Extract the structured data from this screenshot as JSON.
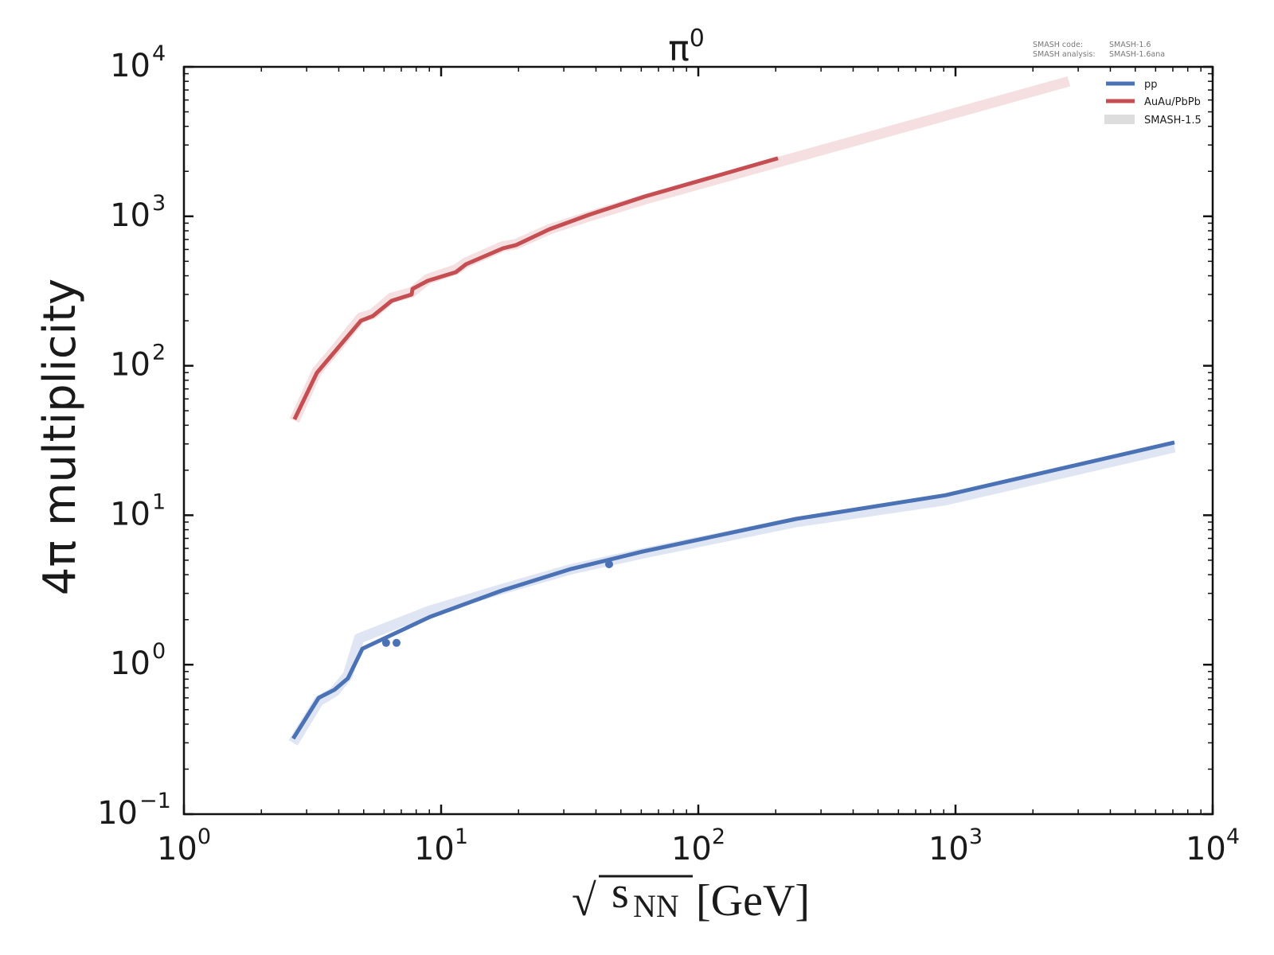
{
  "chart_data": {
    "type": "line",
    "title": "π⁰",
    "title_base": "π",
    "title_sup": "0",
    "xlabel": "√sNN [GeV]",
    "xlabel_parts": {
      "sqrt": "√",
      "s": "s",
      "sub": "NN",
      "unit": "[GeV]"
    },
    "ylabel": "4π multiplicity",
    "xscale": "log",
    "yscale": "log",
    "xlim": [
      1,
      10000
    ],
    "ylim": [
      0.1,
      10000
    ],
    "grid": false,
    "x_ticks": [
      {
        "base": "10",
        "exp": "0",
        "value": 1
      },
      {
        "base": "10",
        "exp": "1",
        "value": 10
      },
      {
        "base": "10",
        "exp": "2",
        "value": 100
      },
      {
        "base": "10",
        "exp": "3",
        "value": 1000
      },
      {
        "base": "10",
        "exp": "4",
        "value": 10000
      }
    ],
    "y_ticks": [
      {
        "base": "10",
        "exp": "−1",
        "value": 0.1
      },
      {
        "base": "10",
        "exp": "0",
        "value": 1
      },
      {
        "base": "10",
        "exp": "1",
        "value": 10
      },
      {
        "base": "10",
        "exp": "2",
        "value": 100
      },
      {
        "base": "10",
        "exp": "3",
        "value": 1000
      },
      {
        "base": "10",
        "exp": "4",
        "value": 10000
      }
    ],
    "legend_position": "top-right",
    "series": [
      {
        "name": "pp",
        "color": "#4a72b5",
        "kind": "line",
        "x": [
          2.66,
          3.34,
          3.85,
          4.34,
          4.94,
          9.05,
          17.2,
          32,
          60.7,
          240,
          912,
          7100
        ],
        "y": [
          0.32,
          0.6,
          0.68,
          0.81,
          1.28,
          2.09,
          3.13,
          4.37,
          5.71,
          9.45,
          13.6,
          30.7
        ]
      },
      {
        "name": "AuAu/PbPb",
        "color": "#c44e52",
        "kind": "line",
        "x": [
          2.69,
          3.29,
          3.9,
          4.87,
          5.42,
          6.42,
          7.68,
          7.74,
          8.86,
          11.4,
          12.5,
          17.4,
          19.5,
          26.4,
          37.6,
          62,
          204
        ],
        "y": [
          43.8,
          90,
          127,
          200,
          215,
          272,
          300,
          327,
          370,
          423,
          478,
          611,
          641,
          820,
          1023,
          1357,
          2443
        ]
      },
      {
        "name": "SMASH-1.5",
        "color": "#dddddd",
        "kind": "band",
        "bands": [
          {
            "of": "pp",
            "color": "#dfe5f2",
            "x": [
              2.66,
              3.34,
              3.85,
              4.34,
              4.8,
              9.05,
              17.2,
              32,
              60.7,
              240,
              912,
              7100
            ],
            "y": [
              0.3,
              0.57,
              0.66,
              0.85,
              1.5,
              2.3,
              3.2,
              4.35,
              5.55,
              9.0,
              12.6,
              28.5
            ]
          },
          {
            "of": "AuAu/PbPb",
            "color": "#f5dfe0",
            "x": [
              2.69,
              3.29,
              3.9,
              4.87,
              5.42,
              6.42,
              7.68,
              8.86,
              11.4,
              12.5,
              17.4,
              19.5,
              26.4,
              37.6,
              62,
              204,
              2760
            ],
            "y": [
              43,
              92,
              130,
              210,
              222,
              285,
              310,
              380,
              440,
              490,
              630,
              650,
              820,
              1000,
              1300,
              2300,
              8000
            ]
          }
        ]
      }
    ],
    "markers": [
      {
        "series": "pp",
        "x": 6.11,
        "y": 1.4
      },
      {
        "series": "pp",
        "x": 6.71,
        "y": 1.4
      },
      {
        "series": "pp",
        "x": 45,
        "y": 4.7
      }
    ]
  },
  "version_info": {
    "code_label": "SMASH code:",
    "code_value": "SMASH-1.6",
    "analysis_label": "SMASH analysis:",
    "analysis_value": "SMASH-1.6ana"
  },
  "legend": {
    "items": [
      "pp",
      "AuAu/PbPb",
      "SMASH-1.5"
    ]
  }
}
